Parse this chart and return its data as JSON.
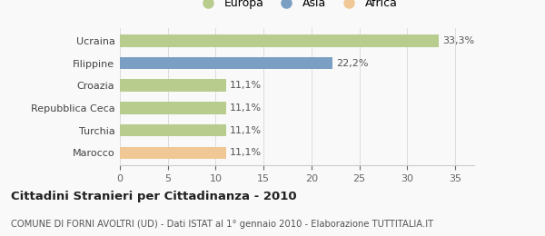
{
  "categories": [
    "Marocco",
    "Turchia",
    "Repubblica Ceca",
    "Croazia",
    "Filippine",
    "Ucraina"
  ],
  "values": [
    11.1,
    11.1,
    11.1,
    11.1,
    22.2,
    33.3
  ],
  "colors": [
    "#f0c896",
    "#b8cc8e",
    "#b8cc8e",
    "#b8cc8e",
    "#7b9fc2",
    "#b8cc8e"
  ],
  "labels": [
    "11,1%",
    "11,1%",
    "11,1%",
    "11,1%",
    "22,2%",
    "33,3%"
  ],
  "legend": [
    {
      "label": "Europa",
      "color": "#b8cc8e"
    },
    {
      "label": "Asia",
      "color": "#7b9fc2"
    },
    {
      "label": "Africa",
      "color": "#f0c896"
    }
  ],
  "xlim": [
    0,
    37
  ],
  "xticks": [
    0,
    5,
    10,
    15,
    20,
    25,
    30,
    35
  ],
  "title": "Cittadini Stranieri per Cittadinanza - 2010",
  "subtitle": "COMUNE DI FORNI AVOLTRI (UD) - Dati ISTAT al 1° gennaio 2010 - Elaborazione TUTTITALIA.IT",
  "background_color": "#f9f9f9",
  "bar_height": 0.55,
  "label_fontsize": 8,
  "ytick_fontsize": 8,
  "xtick_fontsize": 8,
  "title_fontsize": 9.5,
  "subtitle_fontsize": 7.2
}
